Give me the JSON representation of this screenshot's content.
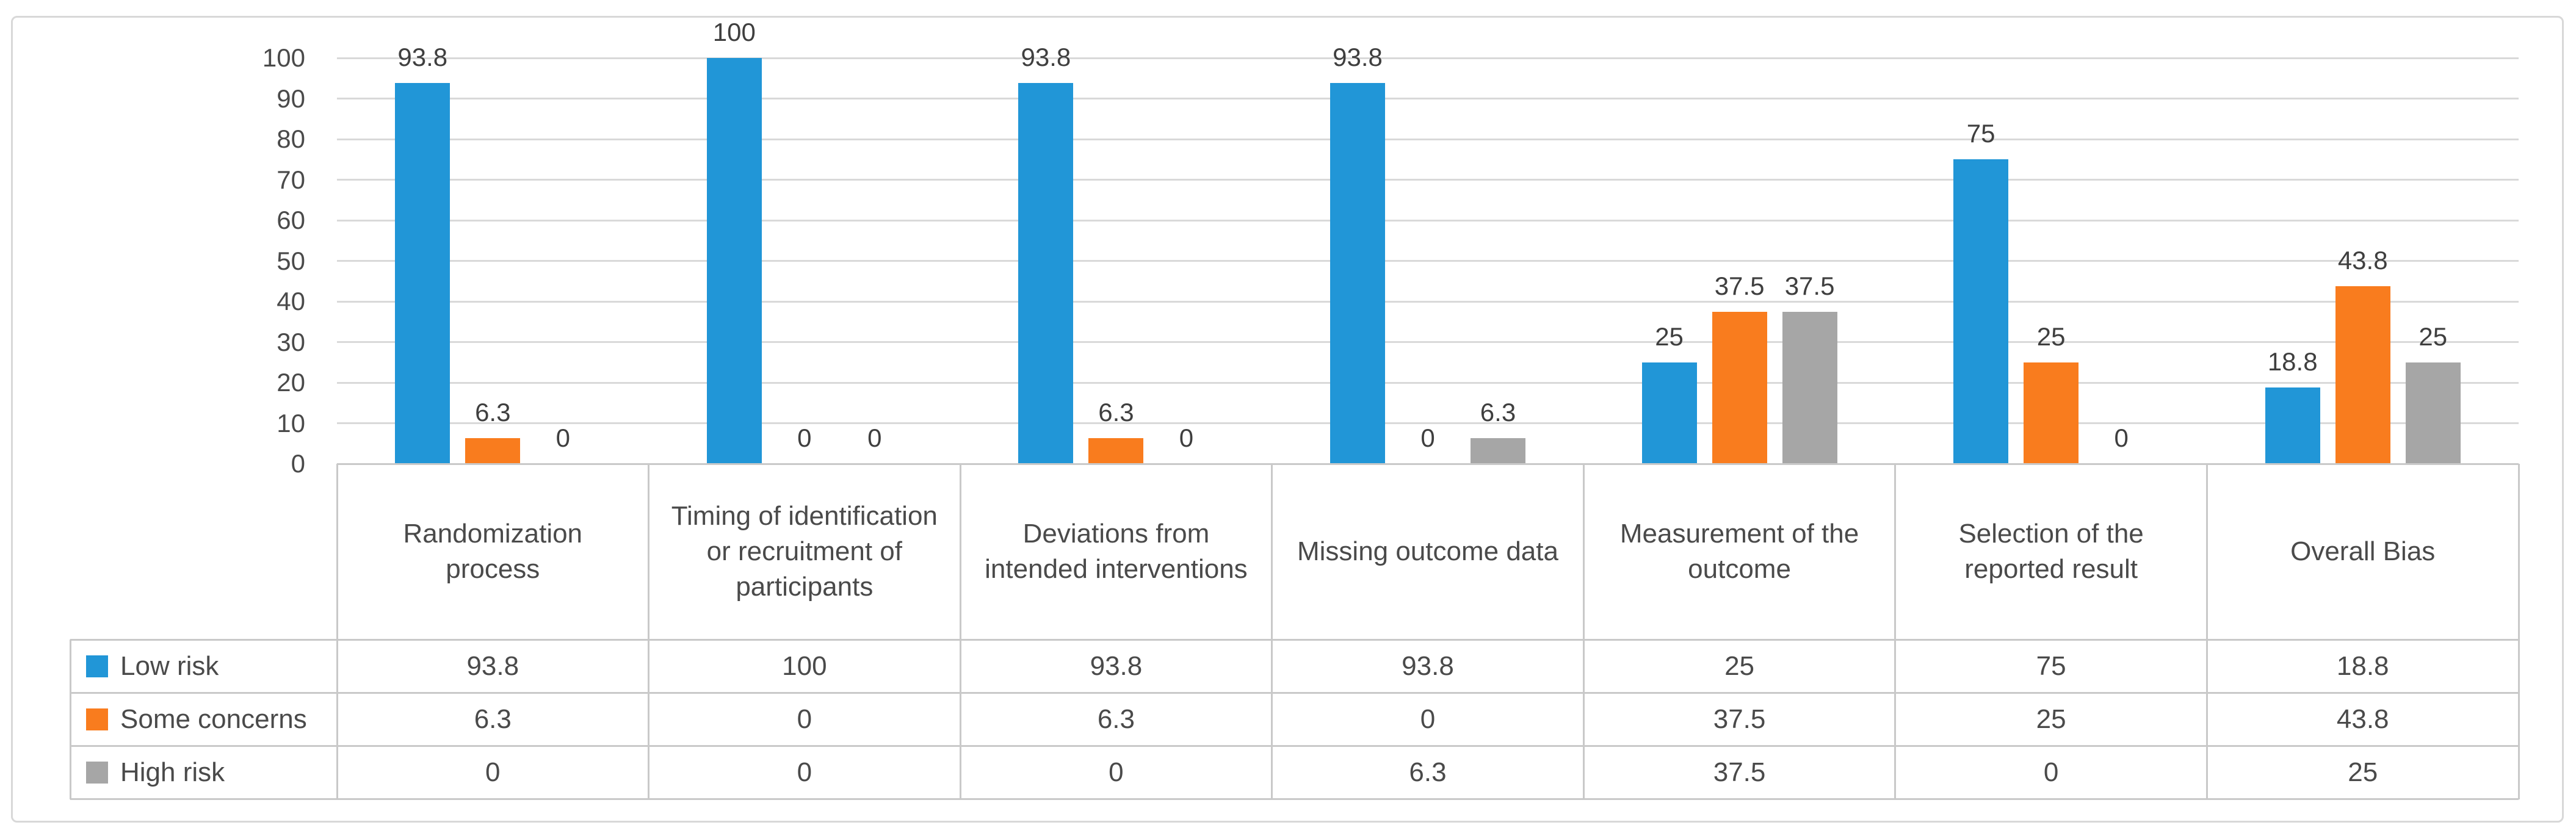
{
  "figure": {
    "description": "Clustered column chart with attached data table (risk of bias summary)",
    "background": "#FFFFFF",
    "border_color": "#D8D8D8"
  },
  "colors": {
    "low_risk": "#2196D7",
    "some_concerns": "#F97C1E",
    "high_risk": "#A6A6A6",
    "gridline": "#D9D9D9",
    "table_border": "#C9C9C9",
    "text": "#4A4A4A",
    "data_label_text": "#3F3F3F"
  },
  "chart_data": {
    "type": "bar",
    "title": "",
    "xlabel": "",
    "ylabel": "",
    "grid": true,
    "data_labels": true,
    "legend_position": "data-table-left",
    "categories": [
      "Randomization process",
      "Timing of identification or recruitment of participants",
      "Deviations from intended interventions",
      "Missing outcome data",
      "Measurement of the outcome",
      "Selection of the reported result",
      "Overall Bias"
    ],
    "series": [
      {
        "name": "Low risk",
        "color": "#2196D7",
        "values": [
          93.8,
          100,
          93.8,
          93.8,
          25,
          75,
          18.8
        ]
      },
      {
        "name": "Some concerns",
        "color": "#F97C1E",
        "values": [
          6.3,
          0,
          6.3,
          0,
          37.5,
          25,
          43.8
        ]
      },
      {
        "name": "High risk",
        "color": "#A6A6A6",
        "values": [
          0,
          0,
          0,
          6.3,
          37.5,
          0,
          25
        ]
      }
    ],
    "y_axis": {
      "min": 0,
      "max": 100,
      "step": 10,
      "ticks": [
        0,
        10,
        20,
        30,
        40,
        50,
        60,
        70,
        80,
        90,
        100
      ]
    }
  }
}
